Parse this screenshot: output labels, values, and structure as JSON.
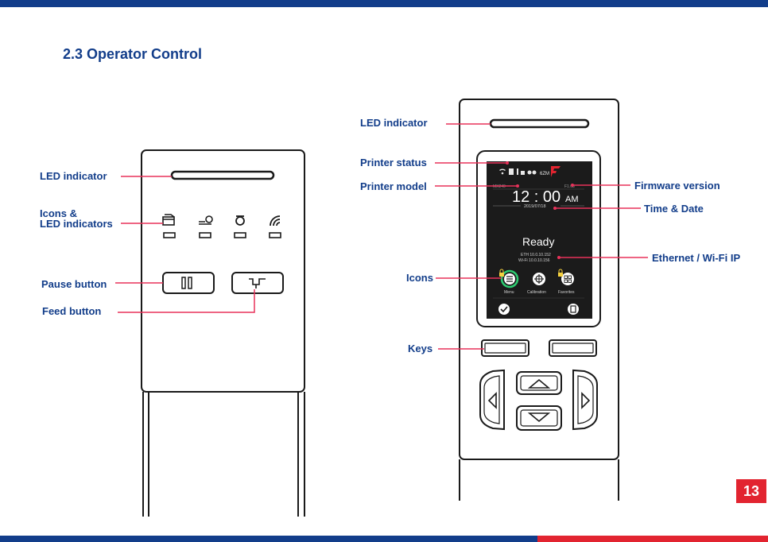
{
  "page": {
    "section_title": "2.3 Operator Control",
    "page_number": "13"
  },
  "left_panel": {
    "labels": {
      "led": "LED indicator",
      "icons_line1": "Icons &",
      "icons_line2": "LED indicators",
      "pause": "Pause button",
      "feed": "Feed button"
    }
  },
  "right_panel": {
    "labels": {
      "led": "LED indicator",
      "status": "Printer status",
      "model": "Printer model",
      "icons": "Icons",
      "keys": "Keys",
      "firmware": "Firmware version",
      "time_date": "Time & Date",
      "ip": "Ethernet / Wi-Fi IP"
    },
    "screen": {
      "status_text": "6ZM",
      "model_text": "MX240",
      "firmware_text": "F1.03",
      "time": "12 : 00",
      "ampm": "AM",
      "date": "2019/07/18",
      "state": "Ready",
      "eth_ip": "ETH 10.0.10.152",
      "wifi_ip": "Wi-Fi 10.0.10.156",
      "menu_label": "Menu",
      "calibration_label": "Calibration",
      "favorites_label": "Favorites"
    }
  },
  "colors": {
    "brand_blue": "#123d8a",
    "accent_red": "#e22430",
    "callout_line": "#e8325a",
    "screen_bg": "#1b1b1b"
  }
}
